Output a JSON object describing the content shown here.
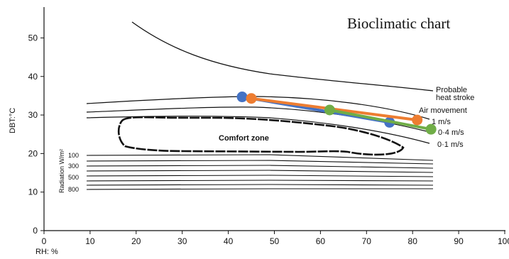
{
  "chart_data": {
    "type": "line",
    "title": "Bioclimatic chart",
    "xlabel": "RH: %",
    "ylabel": "DBT:°C",
    "xlim": [
      0,
      100
    ],
    "ylim": [
      0,
      58
    ],
    "x_ticks": [
      "0",
      "10",
      "20",
      "30",
      "40",
      "50",
      "60",
      "70",
      "80",
      "90",
      "100"
    ],
    "y_ticks": [
      "0",
      "10",
      "20",
      "30",
      "40",
      "50"
    ],
    "grid": false,
    "legend": "none",
    "annotations": {
      "heat_stroke": "Probable heat stroke",
      "air_movement": "Air movement",
      "speed_1": "1 m/s",
      "speed_04": "0·4 m/s",
      "speed_01": "0·1 m/s",
      "comfort_zone": "Comfort zone",
      "radiation": "Radiation W/m²"
    },
    "radiation_levels": [
      "100",
      "300",
      "500",
      "800"
    ],
    "series": [
      {
        "color": "#4472c4",
        "x": [
          43,
          75
        ],
        "y": [
          34.7,
          28.1
        ]
      },
      {
        "color": "#ed7d31",
        "x": [
          45,
          81
        ],
        "y": [
          34.3,
          28.7
        ]
      },
      {
        "color": "#70ad47",
        "x": [
          62,
          84
        ],
        "y": [
          31.3,
          26.3
        ]
      }
    ]
  }
}
